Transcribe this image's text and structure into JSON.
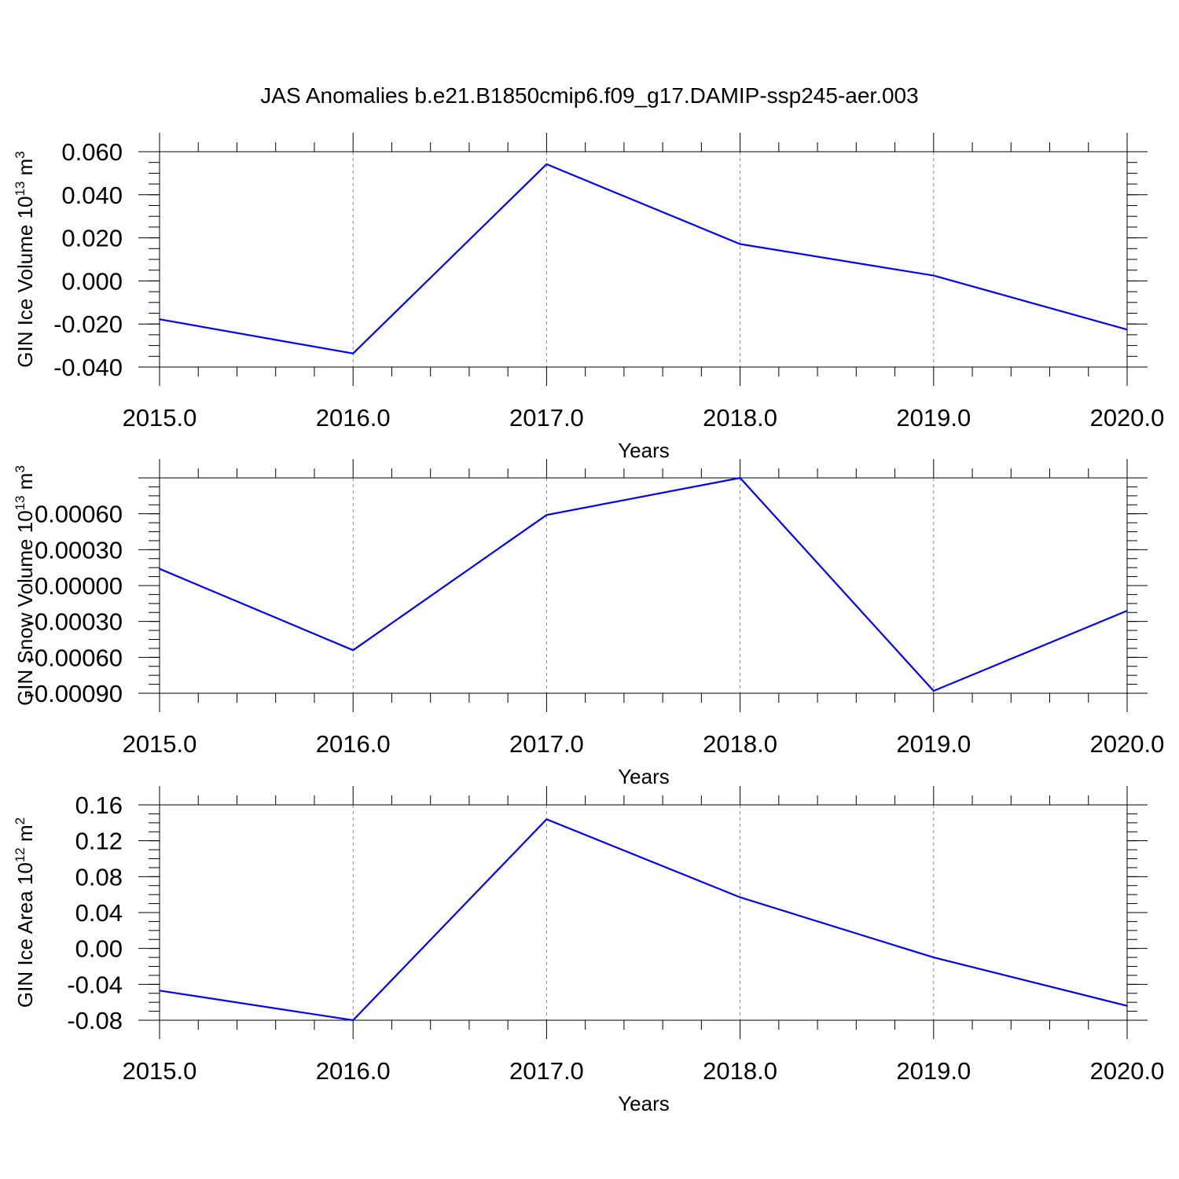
{
  "figure": {
    "title": "JAS Anomalies b.e21.B1850cmip6.f09_g17.DAMIP-ssp245-aer.003"
  },
  "chart_data": [
    {
      "type": "line",
      "ylabel": "GIN Ice Volume 10",
      "ylabel_exp": "13",
      "ylabel_unit": " m",
      "ylabel_unit_exp": "3",
      "xlabel": "Years",
      "x": [
        2015,
        2016,
        2017,
        2018,
        2019,
        2020
      ],
      "x_tick_labels": [
        "2015.0",
        "2016.0",
        "2017.0",
        "2018.0",
        "2019.0",
        "2020.0"
      ],
      "y_ticks": [
        -0.04,
        -0.02,
        0.0,
        0.02,
        0.04,
        0.06
      ],
      "y_tick_labels": [
        "-0.040",
        "-0.020",
        "0.000",
        "0.020",
        "0.040",
        "0.060"
      ],
      "ylim": [
        -0.04,
        0.06
      ],
      "grid": "vertical dashed at major x ticks",
      "series": [
        {
          "values": [
            -0.0178,
            -0.0337,
            0.0542,
            0.0171,
            0.0025,
            -0.0226
          ],
          "color": "#0000ff"
        }
      ]
    },
    {
      "type": "line",
      "ylabel": "GIN Snow Volume 10",
      "ylabel_exp": "13",
      "ylabel_unit": " m",
      "ylabel_unit_exp": "3",
      "xlabel": "Years",
      "x": [
        2015,
        2016,
        2017,
        2018,
        2019,
        2020
      ],
      "x_tick_labels": [
        "2015.0",
        "2016.0",
        "2017.0",
        "2018.0",
        "2019.0",
        "2020.0"
      ],
      "y_ticks": [
        -0.0009,
        -0.0006,
        -0.0003,
        0.0,
        0.0003,
        0.0006
      ],
      "y_tick_labels": [
        "-0.00090",
        "-0.00060",
        "-0.00030",
        "0.00000",
        "0.00030",
        "0.00060"
      ],
      "ylim": [
        -0.0009,
        0.0009
      ],
      "grid": "vertical dashed at major x ticks",
      "series": [
        {
          "values": [
            0.00014,
            -0.00054,
            0.00059,
            0.0009,
            -0.00088,
            -0.00021
          ],
          "color": "#0000ff"
        }
      ]
    },
    {
      "type": "line",
      "ylabel": "GIN Ice Area 10",
      "ylabel_exp": "12",
      "ylabel_unit": " m",
      "ylabel_unit_exp": "2",
      "xlabel": "Years",
      "x": [
        2015,
        2016,
        2017,
        2018,
        2019,
        2020
      ],
      "x_tick_labels": [
        "2015.0",
        "2016.0",
        "2017.0",
        "2018.0",
        "2019.0",
        "2020.0"
      ],
      "y_ticks": [
        -0.08,
        -0.04,
        0.0,
        0.04,
        0.08,
        0.12,
        0.16
      ],
      "y_tick_labels": [
        "-0.08",
        "-0.04",
        "0.00",
        "0.04",
        "0.08",
        "0.12",
        "0.16"
      ],
      "ylim": [
        -0.08,
        0.16
      ],
      "grid": "vertical dashed at major x ticks",
      "series": [
        {
          "values": [
            -0.047,
            -0.08,
            0.144,
            0.057,
            -0.01,
            -0.064
          ],
          "color": "#0000ff"
        }
      ]
    }
  ]
}
